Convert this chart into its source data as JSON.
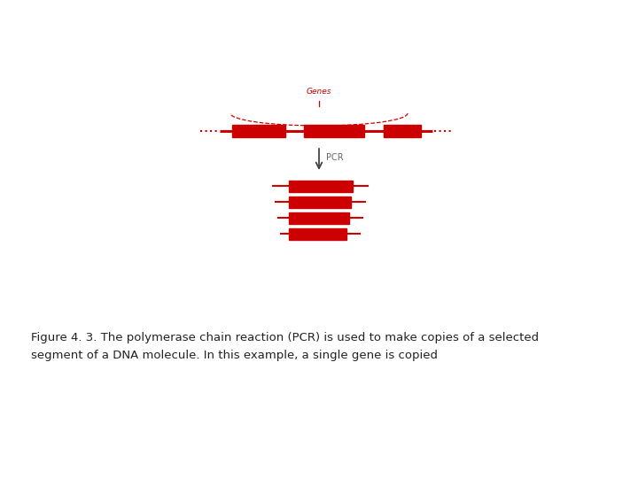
{
  "background_color": "#ffffff",
  "dna_color": "#cc0000",
  "gray_color": "#888888",
  "dark_gray": "#444444",
  "gene_label": "Genes",
  "gene_label_color": "#cc0000",
  "gene_label_fontsize": 6.5,
  "pcr_label": "PCR",
  "pcr_label_color": "#666666",
  "pcr_label_fontsize": 7,
  "caption_line1": "Figure 4. 3. The polymerase chain reaction (PCR) is used to make copies of a selected",
  "caption_line2": "segment of a DNA molecule. In this example, a single gene is copied",
  "caption_fontsize": 9.5,
  "caption_color": "#222222"
}
